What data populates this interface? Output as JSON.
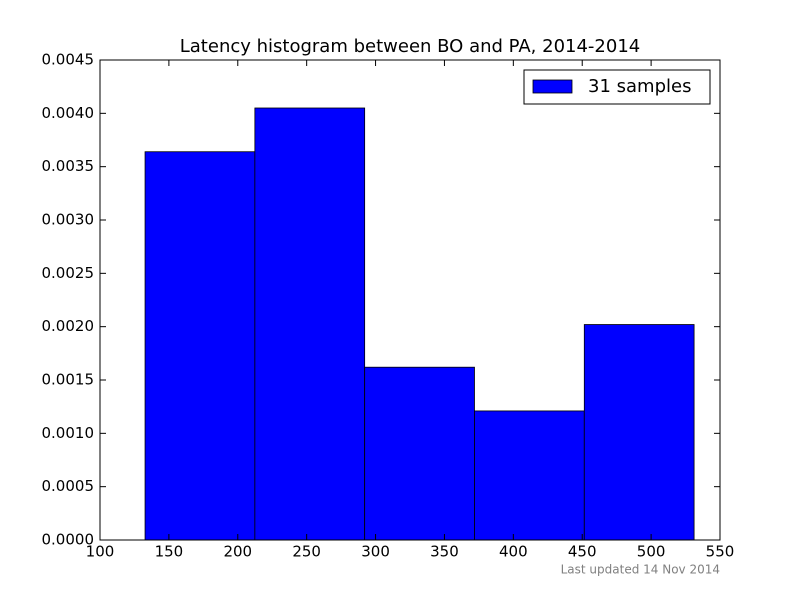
{
  "chart_data": {
    "type": "histogram",
    "title": "Latency histogram between BO and PA, 2014-2014",
    "bins": [
      132.7,
      212.4,
      292.1,
      371.8,
      451.5,
      531.2
    ],
    "values": [
      0.00364,
      0.00405,
      0.00162,
      0.00121,
      0.00202
    ],
    "series_name": "31 samples",
    "color": "#0000ff",
    "legend": "upper right",
    "xlim": [
      100,
      550
    ],
    "xticks": [
      100,
      150,
      200,
      250,
      300,
      350,
      400,
      450,
      500,
      550
    ],
    "ylim": [
      0,
      0.0045
    ],
    "yticks": [
      {
        "value": 0,
        "label": "0.0000"
      },
      {
        "value": 0.0005,
        "label": "0.0005"
      },
      {
        "value": 0.001,
        "label": "0.0010"
      },
      {
        "value": 0.0015,
        "label": "0.0015"
      },
      {
        "value": 0.002,
        "label": "0.0020"
      },
      {
        "value": 0.0025,
        "label": "0.0025"
      },
      {
        "value": 0.003,
        "label": "0.0030"
      },
      {
        "value": 0.0035,
        "label": "0.0035"
      },
      {
        "value": 0.004,
        "label": "0.0040"
      },
      {
        "value": 0.0045,
        "label": "0.0045"
      }
    ],
    "footer": "Last updated 14 Nov 2014"
  }
}
